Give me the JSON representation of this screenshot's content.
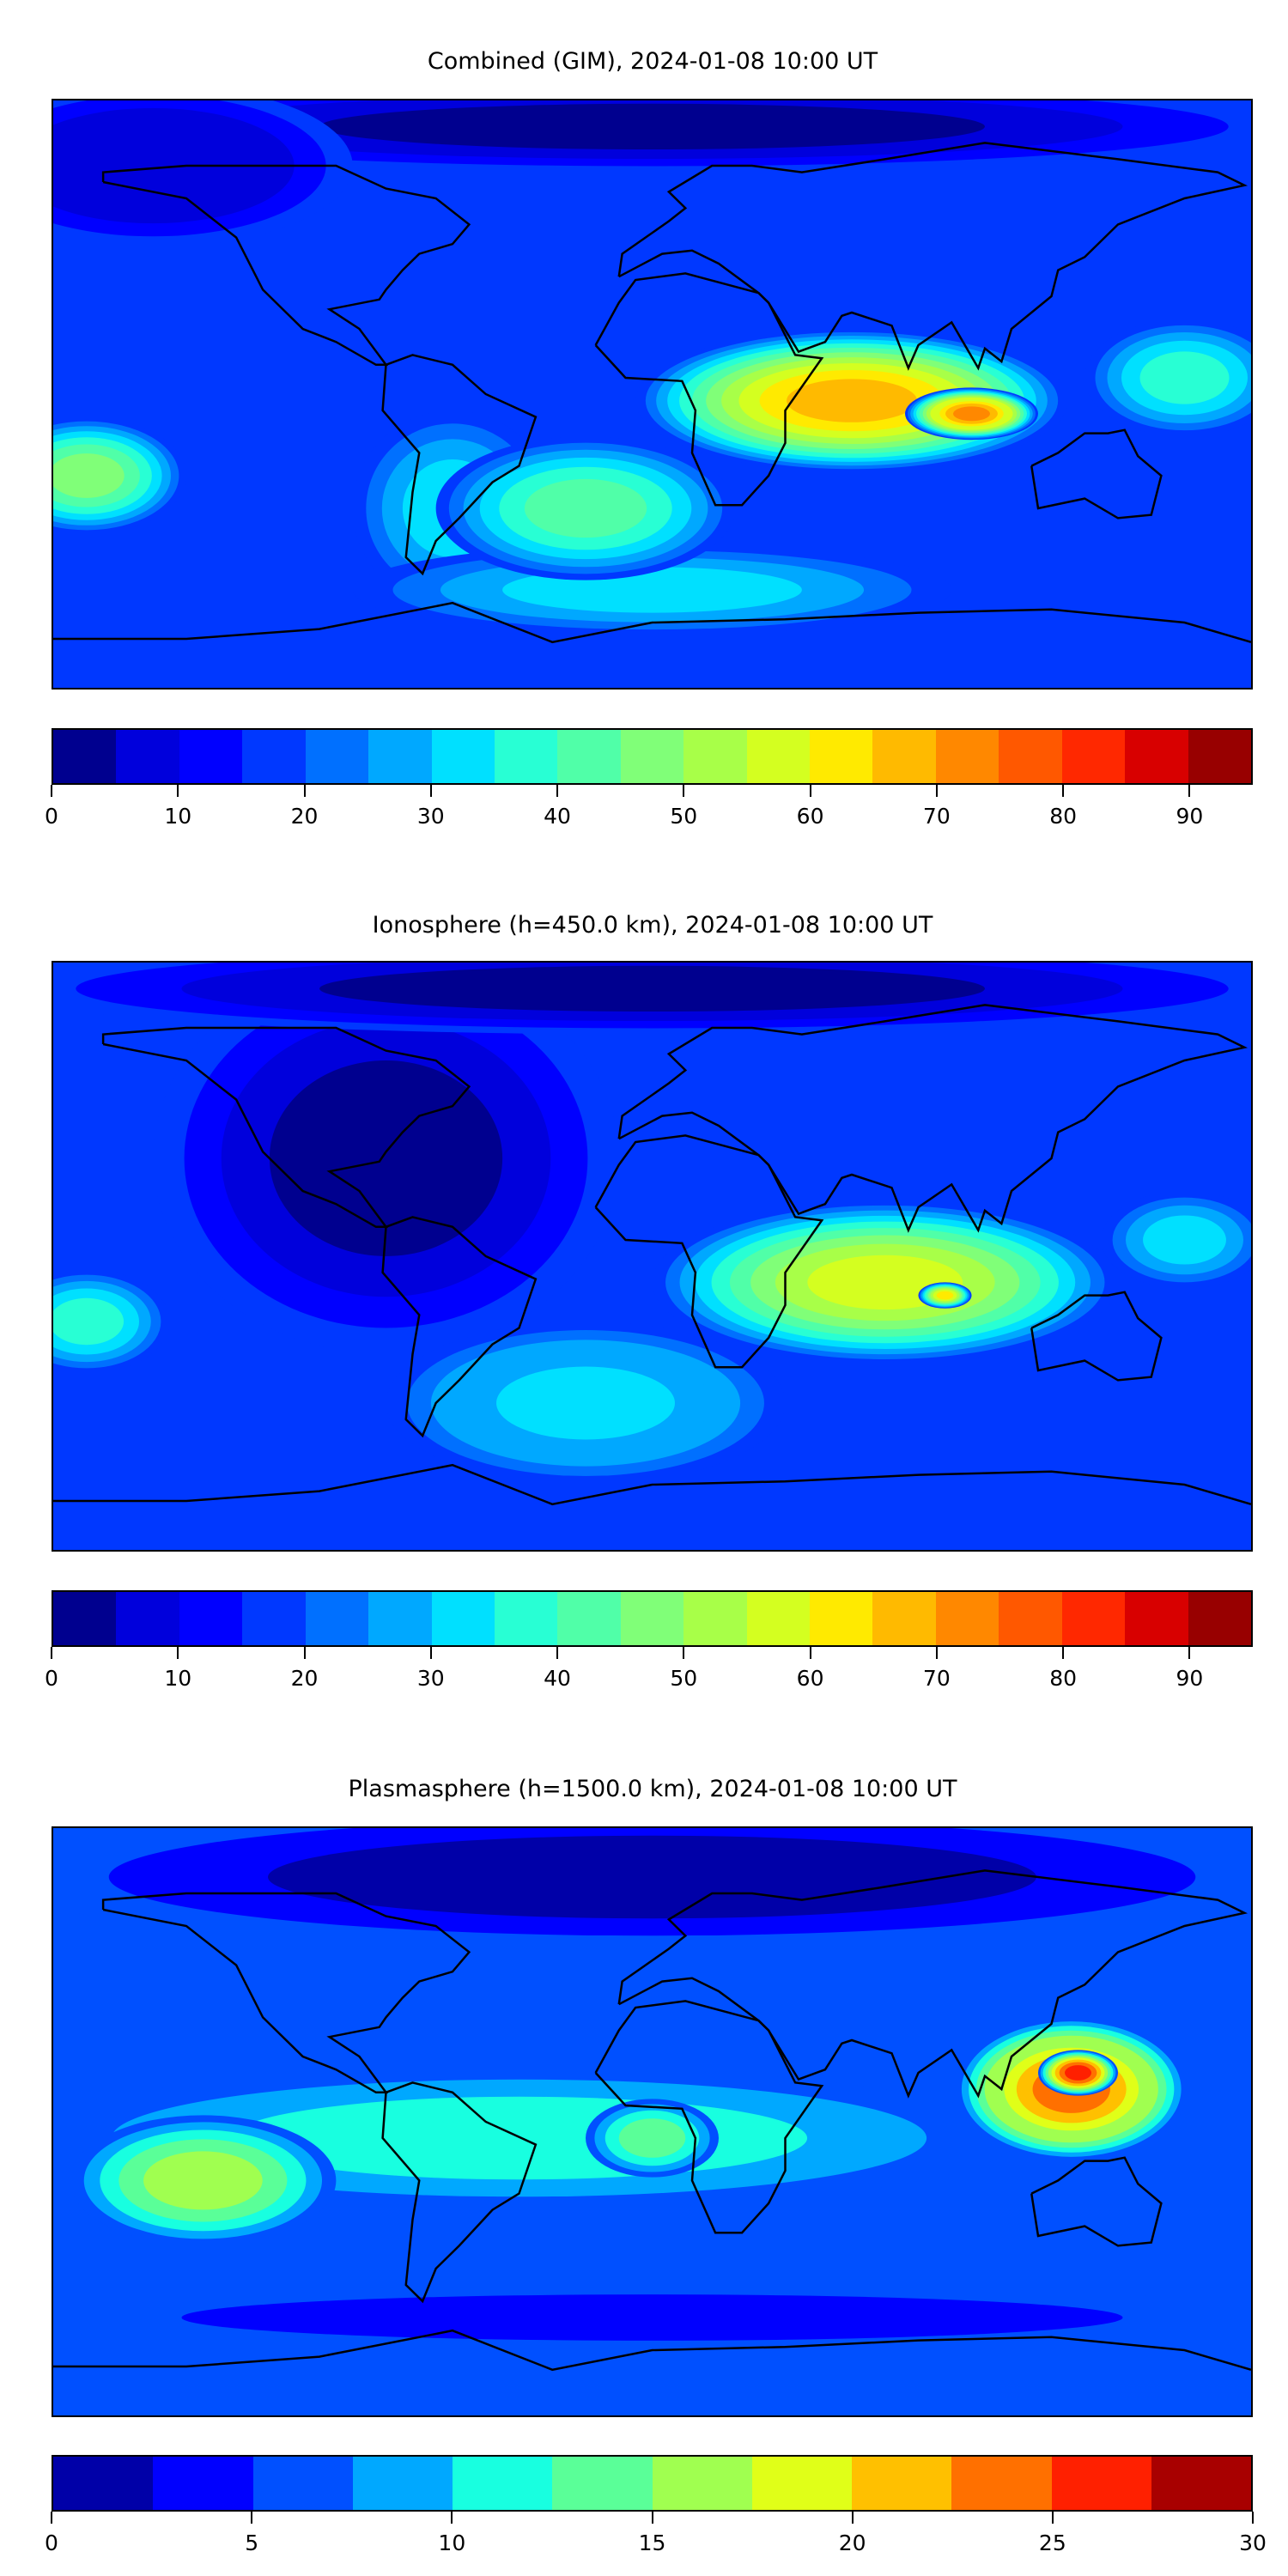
{
  "chart_data": [
    {
      "type": "heatmap",
      "title": "Combined (GIM), 2024-01-08 10:00 UT",
      "xlim": [
        -180,
        180
      ],
      "ylim": [
        -90,
        90
      ],
      "levels": [
        0,
        5,
        10,
        15,
        20,
        25,
        30,
        35,
        40,
        45,
        50,
        55,
        60,
        65,
        70,
        75,
        80,
        85,
        90,
        95
      ],
      "colors": [
        "#00008f",
        "#0000dc",
        "#0000ff",
        "#0038ff",
        "#0070ff",
        "#00a8ff",
        "#00e0ff",
        "#28ffd4",
        "#50ffa8",
        "#80ff78",
        "#a8ff48",
        "#d4ff20",
        "#ffea00",
        "#ffba00",
        "#ff8800",
        "#ff5800",
        "#ff2800",
        "#d80000",
        "#980000"
      ],
      "colorbar_ticks": [
        "0",
        "10",
        "20",
        "30",
        "40",
        "50",
        "60",
        "70",
        "80",
        "90"
      ],
      "colorbar_tick_values": [
        0,
        10,
        20,
        30,
        40,
        50,
        60,
        70,
        80,
        90
      ],
      "background_value": 17,
      "features": [
        {
          "lon": 0,
          "lat": 82,
          "value": 4,
          "rlon": 200,
          "rlat": 14
        },
        {
          "lon": -150,
          "lat": 70,
          "value": 6,
          "rlon": 60,
          "rlat": 25
        },
        {
          "lon": -60,
          "lat": -35,
          "value": 32,
          "rlon": 30,
          "rlat": 30
        },
        {
          "lon": 0,
          "lat": -60,
          "value": 30,
          "rlon": 90,
          "rlat": 14
        },
        {
          "lon": -170,
          "lat": -25,
          "value": 47,
          "rlon": 30,
          "rlat": 18
        },
        {
          "lon": 160,
          "lat": 5,
          "value": 35,
          "rlon": 30,
          "rlat": 18
        },
        {
          "lon": -20,
          "lat": -35,
          "value": 42,
          "rlon": 45,
          "rlat": 22
        },
        {
          "lon": 60,
          "lat": -2,
          "value": 67,
          "rlon": 65,
          "rlat": 22
        },
        {
          "lon": 96,
          "lat": -6,
          "value": 74,
          "rlon": 20,
          "rlat": 8
        }
      ]
    },
    {
      "type": "heatmap",
      "title": "Ionosphere  (h=450.0 km), 2024-01-08 10:00 UT",
      "xlim": [
        -180,
        180
      ],
      "ylim": [
        -90,
        90
      ],
      "levels": [
        0,
        5,
        10,
        15,
        20,
        25,
        30,
        35,
        40,
        45,
        50,
        55,
        60,
        65,
        70,
        75,
        80,
        85,
        90,
        95
      ],
      "colors": [
        "#00008f",
        "#0000dc",
        "#0000ff",
        "#0038ff",
        "#0070ff",
        "#00a8ff",
        "#00e0ff",
        "#28ffd4",
        "#50ffa8",
        "#80ff78",
        "#a8ff48",
        "#d4ff20",
        "#ffea00",
        "#ffba00",
        "#ff8800",
        "#ff5800",
        "#ff2800",
        "#d80000",
        "#980000"
      ],
      "colorbar_ticks": [
        "0",
        "10",
        "20",
        "30",
        "40",
        "50",
        "60",
        "70",
        "80",
        "90"
      ],
      "colorbar_tick_values": [
        0,
        10,
        20,
        30,
        40,
        50,
        60,
        70,
        80,
        90
      ],
      "background_value": 17,
      "features": [
        {
          "lon": -80,
          "lat": 30,
          "value": 4,
          "rlon": 70,
          "rlat": 60
        },
        {
          "lon": 0,
          "lat": 82,
          "value": 4,
          "rlon": 200,
          "rlat": 14
        },
        {
          "lon": -170,
          "lat": -20,
          "value": 37,
          "rlon": 25,
          "rlat": 16
        },
        {
          "lon": -20,
          "lat": -45,
          "value": 33,
          "rlon": 60,
          "rlat": 25
        },
        {
          "lon": 160,
          "lat": 5,
          "value": 30,
          "rlon": 25,
          "rlat": 15
        },
        {
          "lon": 70,
          "lat": -8,
          "value": 57,
          "rlon": 70,
          "rlat": 25
        },
        {
          "lon": 88,
          "lat": -12,
          "value": 62,
          "rlon": 8,
          "rlat": 4
        }
      ]
    },
    {
      "type": "heatmap",
      "title": "Plasmasphere (h=1500.0 km), 2024-01-08 10:00 UT",
      "xlim": [
        -180,
        180
      ],
      "ylim": [
        -90,
        90
      ],
      "levels": [
        0,
        2.5,
        5,
        7.5,
        10,
        12.5,
        15,
        17.5,
        20,
        22.5,
        25,
        27.5,
        30
      ],
      "colors": [
        "#0000a8",
        "#0000ff",
        "#0050ff",
        "#00a8ff",
        "#18ffe0",
        "#5aff98",
        "#a0ff50",
        "#e0ff18",
        "#ffc000",
        "#ff7000",
        "#ff2000",
        "#a80000"
      ],
      "colorbar_ticks": [
        "0",
        "5",
        "10",
        "15",
        "20",
        "25",
        "30"
      ],
      "colorbar_tick_values": [
        0,
        5,
        10,
        15,
        20,
        25,
        30
      ],
      "background_value": 6,
      "features": [
        {
          "lon": 0,
          "lat": 75,
          "value": 1,
          "rlon": 200,
          "rlat": 22
        },
        {
          "lon": 0,
          "lat": -60,
          "value": 4,
          "rlon": 200,
          "rlat": 10
        },
        {
          "lon": -40,
          "lat": -5,
          "value": 11,
          "rlon": 150,
          "rlat": 22
        },
        {
          "lon": -135,
          "lat": -18,
          "value": 15,
          "rlon": 40,
          "rlat": 20
        },
        {
          "lon": 0,
          "lat": -5,
          "value": 13,
          "rlon": 20,
          "rlat": 12
        },
        {
          "lon": 126,
          "lat": 10,
          "value": 24,
          "rlon": 35,
          "rlat": 22
        },
        {
          "lon": 128,
          "lat": 15,
          "value": 26,
          "rlon": 12,
          "rlat": 7
        }
      ]
    }
  ]
}
